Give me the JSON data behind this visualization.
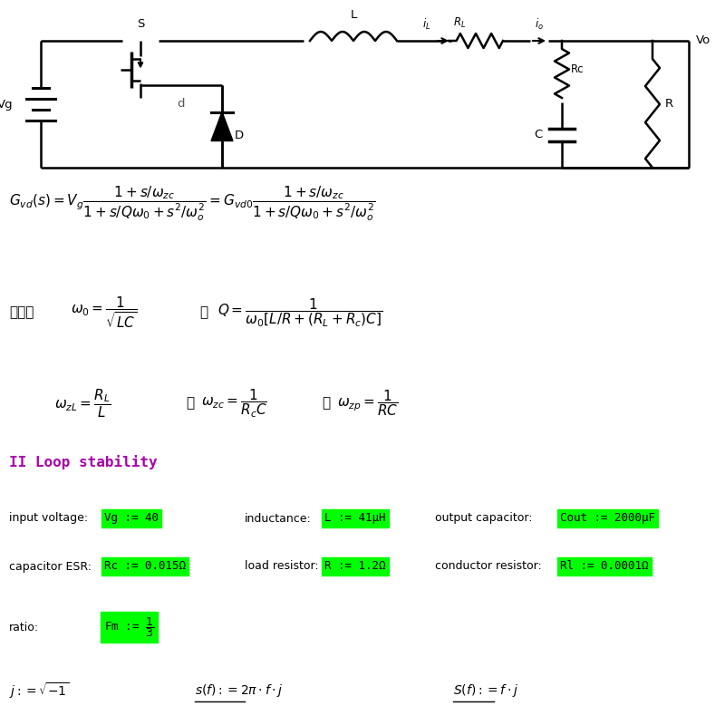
{
  "bg_color": "#ffffff",
  "green_bg": "#00ff00",
  "purple_color": "#aa00aa",
  "fig_width": 8.0,
  "fig_height": 8.0,
  "dpi": 100,
  "circuit_labels": {
    "vg": "Vg",
    "s": "S",
    "l": "L",
    "rl": "R_L",
    "il": "i_L",
    "io": "i_o",
    "vo": "Vo",
    "d": "d",
    "diode": "D",
    "rc": "Rc",
    "c": "C",
    "r": "R"
  },
  "section_title": "II Loop stability",
  "row1": [
    {
      "label": "input voltage:",
      "box": "Vg := 40"
    },
    {
      "label": "inductance:",
      "box": "L := 41μH"
    },
    {
      "label": "output capacitor:",
      "box": "Cout := 2000μF"
    }
  ],
  "row2": [
    {
      "label": "capacitor ESR:",
      "box": "Rc := 0.015Ω"
    },
    {
      "label": "load resistor:",
      "box": "R := 1.2Ω"
    },
    {
      "label": "conductor resistor:",
      "box": "Rl := 0.0001Ω"
    }
  ],
  "ratio_label": "ratio:",
  "ratio_box_line1": "Fm := ",
  "ratio_num": "1",
  "ratio_den": "3"
}
